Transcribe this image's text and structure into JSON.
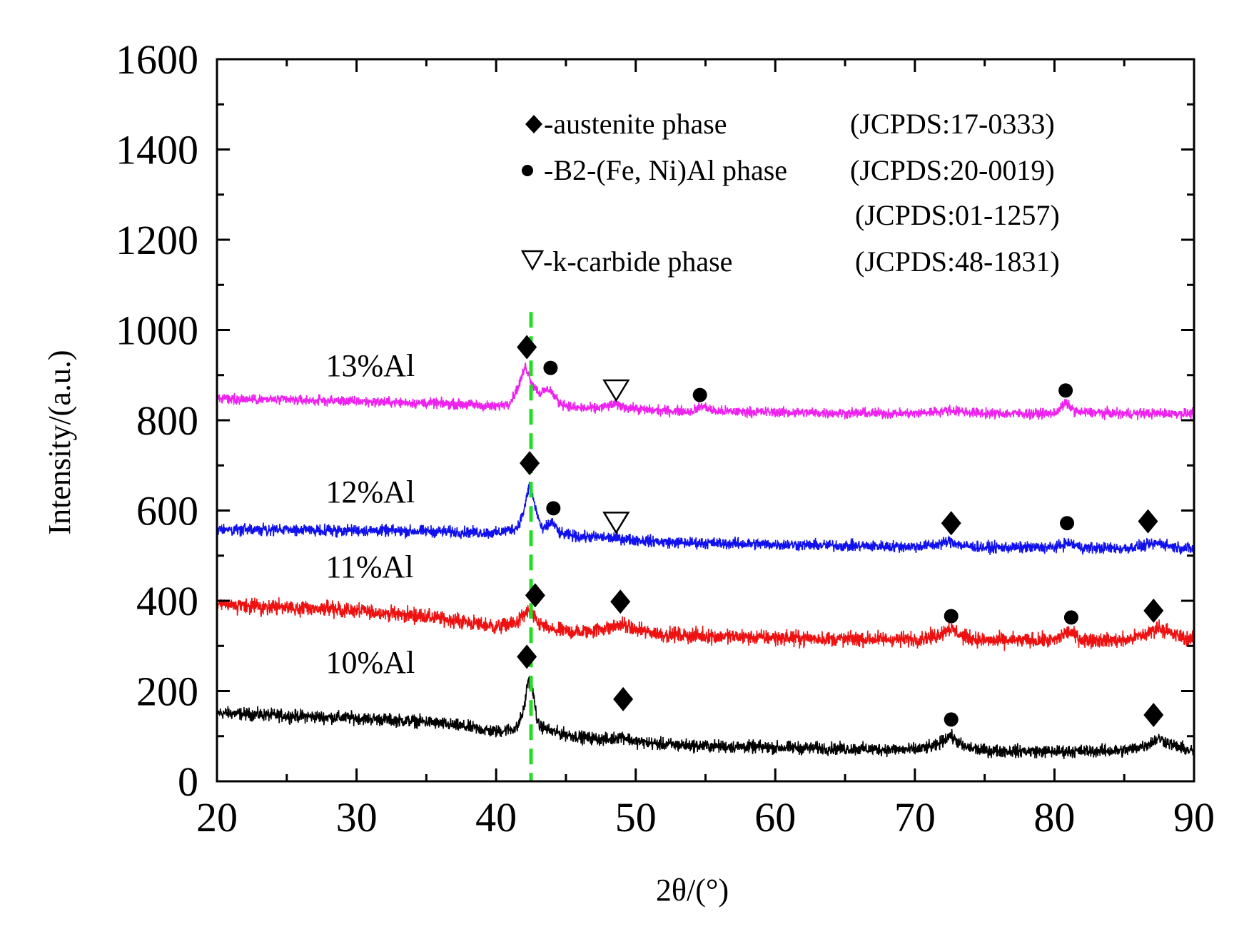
{
  "chart_data": {
    "type": "line",
    "title": "",
    "xlabel": "2θ/(°)",
    "ylabel": "Intensity/(a.u.)",
    "xlim": [
      20,
      90
    ],
    "ylim": [
      0,
      1600
    ],
    "xticks": [
      20,
      30,
      40,
      50,
      60,
      70,
      80,
      90
    ],
    "yticks": [
      0,
      200,
      400,
      600,
      800,
      1000,
      1200,
      1400,
      1600
    ],
    "xtick_labels": [
      "20",
      "30",
      "40",
      "50",
      "60",
      "70",
      "80",
      "90"
    ],
    "ytick_labels": [
      "0",
      "200",
      "400",
      "600",
      "800",
      "1000",
      "1200",
      "1400",
      "1600"
    ],
    "grid": false,
    "reference_line": {
      "x": 42.5,
      "color": "#22dd22",
      "style": "dashed"
    },
    "series": [
      {
        "name": "10%Al",
        "color": "#000000",
        "noise": 10,
        "x": [
          20,
          25,
          30,
          35,
          38,
          40,
          41.5,
          42.0,
          42.3,
          42.6,
          43.0,
          44.0,
          46,
          48,
          49,
          50,
          52,
          55,
          60,
          65,
          70,
          71.5,
          72.5,
          73.5,
          75,
          80,
          85,
          86.5,
          87.5,
          88.5,
          90
        ],
        "y": [
          152,
          145,
          140,
          132,
          120,
          110,
          118,
          160,
          228,
          205,
          125,
          110,
          98,
          92,
          100,
          88,
          82,
          78,
          75,
          72,
          70,
          78,
          102,
          76,
          68,
          66,
          68,
          80,
          95,
          80,
          65
        ]
      },
      {
        "name": "11%Al",
        "color": "#ee1111",
        "noise": 12,
        "x": [
          20,
          25,
          30,
          35,
          38,
          40,
          41.5,
          42.3,
          43,
          44,
          46,
          48,
          49,
          50,
          52,
          55,
          60,
          65,
          70,
          71.5,
          72.5,
          73.5,
          75,
          80,
          81,
          82,
          85,
          86.5,
          87.5,
          88.5,
          90
        ],
        "y": [
          390,
          385,
          378,
          365,
          352,
          342,
          352,
          378,
          350,
          335,
          330,
          340,
          348,
          335,
          325,
          322,
          318,
          315,
          315,
          322,
          340,
          320,
          312,
          312,
          332,
          314,
          312,
          325,
          342,
          325,
          313
        ]
      },
      {
        "name": "12%Al",
        "color": "#1111ee",
        "noise": 9,
        "x": [
          20,
          25,
          30,
          35,
          38,
          40,
          41.5,
          42.0,
          42.4,
          42.8,
          43.3,
          44.0,
          44.6,
          46,
          48,
          50,
          52,
          55,
          60,
          65,
          70,
          71.5,
          72.5,
          73.5,
          75,
          80,
          81,
          82,
          85,
          86.5,
          87.5,
          88.5,
          90
        ],
        "y": [
          558,
          557,
          556,
          554,
          552,
          550,
          562,
          600,
          660,
          608,
          555,
          575,
          548,
          542,
          540,
          535,
          530,
          528,
          525,
          522,
          520,
          524,
          532,
          522,
          518,
          518,
          528,
          518,
          516,
          522,
          528,
          520,
          515
        ]
      },
      {
        "name": "13%Al",
        "color": "#ee22ee",
        "noise": 8,
        "x": [
          20,
          25,
          30,
          35,
          38,
          40,
          41.0,
          41.6,
          42.1,
          42.6,
          43.1,
          43.8,
          44.5,
          45.5,
          47,
          48.5,
          49.5,
          51,
          54,
          54.8,
          55.6,
          60,
          65,
          70,
          72.5,
          75,
          80,
          80.8,
          81.6,
          85,
          90
        ],
        "y": [
          848,
          845,
          842,
          838,
          835,
          830,
          840,
          875,
          920,
          880,
          860,
          870,
          840,
          828,
          826,
          835,
          828,
          822,
          820,
          832,
          820,
          818,
          816,
          815,
          822,
          815,
          815,
          838,
          818,
          815,
          815
        ]
      }
    ],
    "series_labels": [
      {
        "text": "10%Al",
        "x": 27.8,
        "y": 240
      },
      {
        "text": "11%Al",
        "x": 27.8,
        "y": 452
      },
      {
        "text": "12%Al",
        "x": 27.8,
        "y": 618
      },
      {
        "text": "13%Al",
        "x": 27.8,
        "y": 898
      }
    ],
    "peak_markers": [
      {
        "phase": "austenite",
        "symbol": "diamond",
        "x": 42.2,
        "y": 962
      },
      {
        "phase": "B2",
        "symbol": "circle",
        "x": 43.9,
        "y": 916
      },
      {
        "phase": "k-carbide",
        "symbol": "triangle-down",
        "x": 48.6,
        "y": 868
      },
      {
        "phase": "B2",
        "symbol": "circle",
        "x": 54.6,
        "y": 856
      },
      {
        "phase": "B2",
        "symbol": "circle",
        "x": 80.8,
        "y": 866
      },
      {
        "phase": "austenite",
        "symbol": "diamond",
        "x": 42.4,
        "y": 705
      },
      {
        "phase": "B2",
        "symbol": "circle",
        "x": 44.1,
        "y": 605
      },
      {
        "phase": "k-carbide",
        "symbol": "triangle-down",
        "x": 48.6,
        "y": 575
      },
      {
        "phase": "austenite",
        "symbol": "diamond",
        "x": 72.6,
        "y": 572
      },
      {
        "phase": "B2",
        "symbol": "circle",
        "x": 80.9,
        "y": 572
      },
      {
        "phase": "austenite",
        "symbol": "diamond",
        "x": 86.7,
        "y": 576
      },
      {
        "phase": "austenite",
        "symbol": "diamond",
        "x": 42.8,
        "y": 412
      },
      {
        "phase": "austenite",
        "symbol": "diamond",
        "x": 48.9,
        "y": 398
      },
      {
        "phase": "B2",
        "symbol": "circle",
        "x": 72.6,
        "y": 366
      },
      {
        "phase": "B2",
        "symbol": "circle",
        "x": 81.2,
        "y": 363
      },
      {
        "phase": "austenite",
        "symbol": "diamond",
        "x": 87.1,
        "y": 378
      },
      {
        "phase": "austenite",
        "symbol": "diamond",
        "x": 42.2,
        "y": 276
      },
      {
        "phase": "austenite",
        "symbol": "diamond",
        "x": 49.1,
        "y": 182
      },
      {
        "phase": "B2",
        "symbol": "circle",
        "x": 72.6,
        "y": 137
      },
      {
        "phase": "austenite",
        "symbol": "diamond",
        "x": 87.1,
        "y": 147
      }
    ],
    "legend": {
      "position": "top-right",
      "entries": [
        {
          "symbol": "diamond",
          "label": "-austenite phase",
          "ref": "(JCPDS:17-0333)"
        },
        {
          "symbol": "circle",
          "label": "-B2-(Fe, Ni)Al phase",
          "ref": "(JCPDS:20-0019)"
        },
        {
          "symbol": "none",
          "label": "",
          "ref": "(JCPDS:01-1257)"
        },
        {
          "symbol": "triangle-down",
          "label": "-k-carbide phase",
          "ref": "(JCPDS:48-1831)"
        }
      ]
    }
  }
}
